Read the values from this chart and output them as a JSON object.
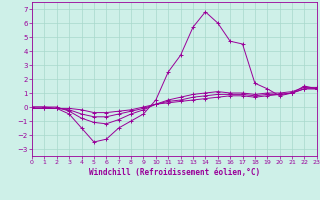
{
  "xlabel": "Windchill (Refroidissement éolien,°C)",
  "xlim": [
    0,
    23
  ],
  "ylim": [
    -3.5,
    7.5
  ],
  "xticks": [
    0,
    1,
    2,
    3,
    4,
    5,
    6,
    7,
    8,
    9,
    10,
    11,
    12,
    13,
    14,
    15,
    16,
    17,
    18,
    19,
    20,
    21,
    22,
    23
  ],
  "yticks": [
    -3,
    -2,
    -1,
    0,
    1,
    2,
    3,
    4,
    5,
    6,
    7
  ],
  "background_color": "#cef0e8",
  "grid_color": "#a8d8cc",
  "line_color": "#990099",
  "line1": [
    0.0,
    0.0,
    -0.1,
    -0.5,
    -1.5,
    -2.5,
    -2.3,
    -1.5,
    -1.0,
    -0.5,
    0.5,
    2.5,
    3.7,
    5.7,
    6.8,
    6.0,
    4.7,
    4.5,
    1.7,
    1.3,
    0.8,
    1.0,
    1.5,
    1.3
  ],
  "line2": [
    0.0,
    0.0,
    0.0,
    -0.3,
    -0.8,
    -1.1,
    -1.2,
    -0.9,
    -0.5,
    -0.2,
    0.2,
    0.5,
    0.7,
    0.9,
    1.0,
    1.1,
    1.0,
    1.0,
    0.9,
    1.0,
    1.0,
    1.1,
    1.4,
    1.4
  ],
  "line3": [
    -0.1,
    -0.1,
    -0.1,
    -0.2,
    -0.5,
    -0.7,
    -0.7,
    -0.5,
    -0.3,
    -0.1,
    0.2,
    0.4,
    0.5,
    0.7,
    0.8,
    0.9,
    0.9,
    0.9,
    0.8,
    0.9,
    0.9,
    1.0,
    1.3,
    1.3
  ],
  "line4": [
    -0.1,
    -0.1,
    -0.1,
    -0.1,
    -0.2,
    -0.4,
    -0.4,
    -0.3,
    -0.2,
    0.0,
    0.2,
    0.3,
    0.4,
    0.5,
    0.6,
    0.7,
    0.8,
    0.8,
    0.7,
    0.8,
    0.9,
    1.0,
    1.3,
    1.3
  ]
}
